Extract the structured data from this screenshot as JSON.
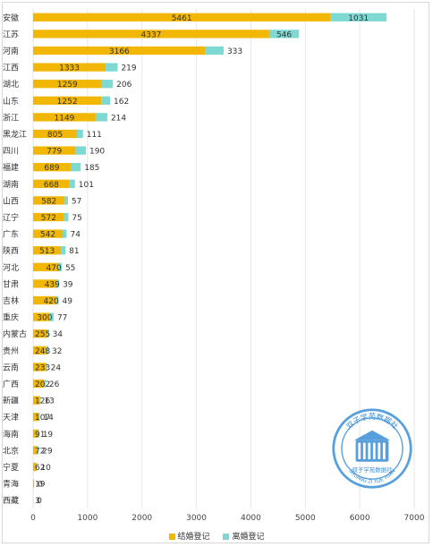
{
  "chart_data": {
    "type": "bar",
    "orientation": "horizontal",
    "stacked": true,
    "categories": [
      "安徽",
      "江苏",
      "河南",
      "江西",
      "湖北",
      "山东",
      "浙江",
      "黑龙江",
      "四川",
      "福建",
      "湖南",
      "山西",
      "辽宁",
      "广东",
      "陕西",
      "河北",
      "甘肃",
      "吉林",
      "重庆",
      "内蒙古",
      "贵州",
      "云南",
      "广西",
      "新疆",
      "天津",
      "海南",
      "北京",
      "宁夏",
      "青海",
      "西藏"
    ],
    "series": [
      {
        "name": "结婚登记",
        "color": "#F2B705",
        "values": [
          5461,
          4337,
          3166,
          1333,
          1259,
          1252,
          1149,
          805,
          779,
          689,
          668,
          582,
          572,
          542,
          513,
          470,
          439,
          420,
          300,
          255,
          248,
          233,
          202,
          126,
          107,
          91,
          72,
          62,
          19,
          3
        ]
      },
      {
        "name": "离婚登记",
        "color": "#7ED9D3",
        "values": [
          1031,
          546,
          333,
          219,
          206,
          162,
          214,
          111,
          190,
          185,
          101,
          57,
          75,
          74,
          81,
          55,
          39,
          49,
          77,
          34,
          32,
          24,
          26,
          13,
          14,
          19,
          29,
          10,
          0,
          0
        ]
      }
    ],
    "xlim": [
      0,
      7000
    ],
    "xticks": [
      0,
      1000,
      2000,
      3000,
      4000,
      5000,
      6000,
      7000
    ],
    "grid": true,
    "legend_position": "bottom"
  },
  "watermark": {
    "text_top": "双子学苑数据社",
    "text_bottom": "双子学苑数据社",
    "text_roman": "SHUANG ZI XUE YUAN",
    "color": "#3a8fd6"
  }
}
